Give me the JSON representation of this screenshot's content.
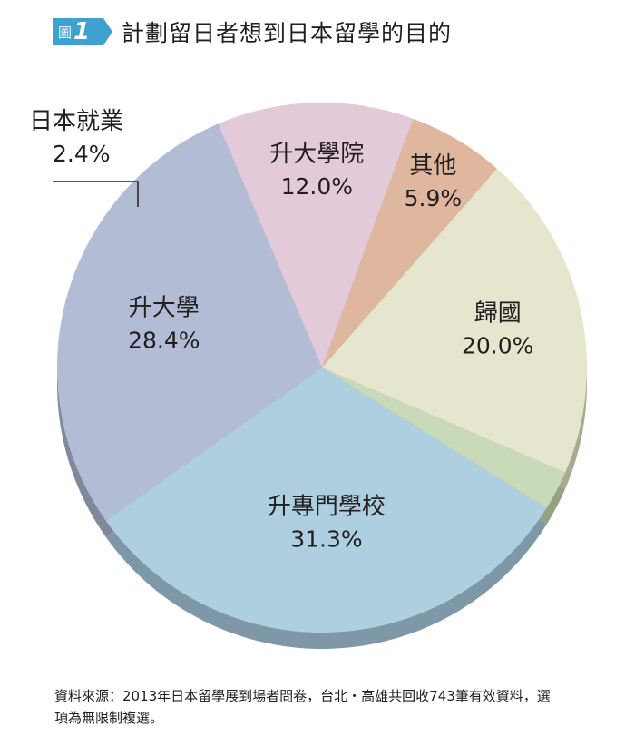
{
  "figure": {
    "word": "圖",
    "number": "1"
  },
  "chart_data": {
    "type": "pie",
    "title": "計劃留日者想到日本留學的目的",
    "slices": [
      {
        "label": "升專門學校",
        "value_text": "31.3%",
        "value": 31.3,
        "color": "#aecfe0",
        "edge": "#7f98a8"
      },
      {
        "label": "升大學",
        "value_text": "28.4%",
        "value": 28.4,
        "color": "#b3bcd5",
        "edge": "#80889e"
      },
      {
        "label": "升大學院",
        "value_text": "12.0%",
        "value": 12.0,
        "color": "#e2cad9",
        "edge": "#a58f9c"
      },
      {
        "label": "其他",
        "value_text": "5.9%",
        "value": 5.9,
        "color": "#dfb79e",
        "edge": "#a88670"
      },
      {
        "label": "歸國",
        "value_text": "20.0%",
        "value": 20.0,
        "color": "#e6e5ce",
        "edge": "#aaa992"
      },
      {
        "label": "日本就業",
        "value_text": "2.4%",
        "value": 2.4,
        "color": "#c9dab8",
        "edge": "#93a283"
      }
    ]
  },
  "source_note": "資料來源：2013年日本留學展到場者問卷，台北・高雄共回收743筆有效資料，選項為無限制複選。"
}
